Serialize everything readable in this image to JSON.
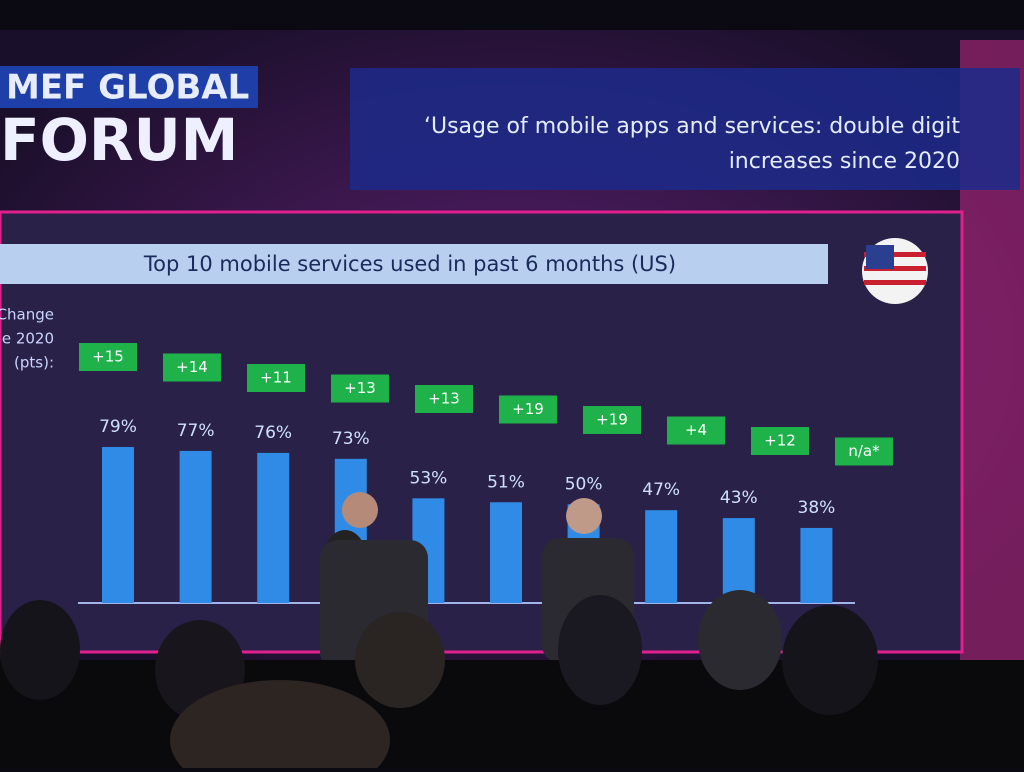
{
  "header": {
    "brand_line1": "MEF GLOBAL",
    "brand_line2": "FORUM",
    "headline_line1": "‘Usage of mobile apps and services: double digit",
    "headline_line2": "increases since 2020"
  },
  "chart_data": {
    "type": "bar",
    "title": "Top 10 mobile services used in past 6 months (US)",
    "change_caption": [
      "Change",
      "e 2020",
      "(pts):"
    ],
    "categories": [
      null,
      null,
      null,
      null,
      null,
      null,
      null,
      null,
      null,
      null
    ],
    "values": [
      79,
      77,
      76,
      73,
      53,
      51,
      50,
      47,
      43,
      38
    ],
    "value_labels": [
      "79%",
      "77%",
      "76%",
      "73%",
      "53%",
      "51%",
      "50%",
      "47%",
      "43%",
      "38%"
    ],
    "change_labels": [
      "+15",
      "+14",
      "+11",
      "+13",
      "+13",
      "+19",
      "+19",
      "+4",
      "+12",
      "n/a*"
    ],
    "color": "#2f8be6",
    "change_color": "#1fb24a"
  }
}
